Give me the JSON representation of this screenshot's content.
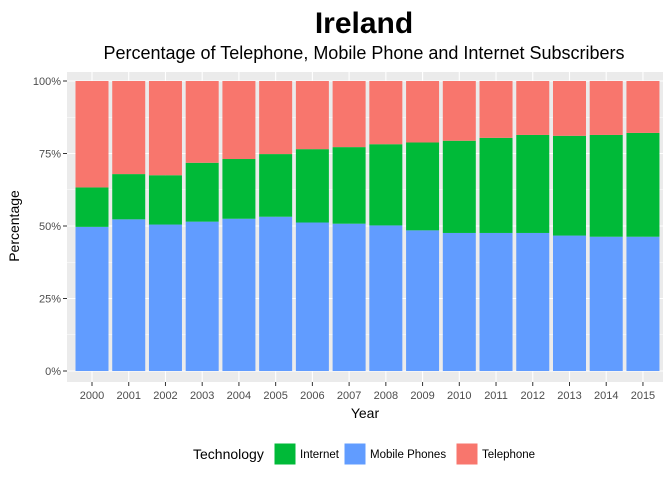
{
  "chart_data": {
    "type": "bar",
    "stacked": true,
    "title": "Ireland",
    "subtitle": "Percentage of Telephone, Mobile Phone and Internet Subscribers",
    "xlabel": "Year",
    "ylabel": "Percentage",
    "ylim": [
      0,
      100
    ],
    "y_ticks": [
      "0%",
      "25%",
      "50%",
      "75%",
      "100%"
    ],
    "categories": [
      "2000",
      "2001",
      "2002",
      "2003",
      "2004",
      "2005",
      "2006",
      "2007",
      "2008",
      "2009",
      "2010",
      "2011",
      "2012",
      "2013",
      "2014",
      "2015"
    ],
    "series": [
      {
        "name": "Mobile Phones",
        "color": "#619CFF",
        "values": [
          49.7,
          52.3,
          50.5,
          51.5,
          52.5,
          53.2,
          51.2,
          50.8,
          50.2,
          48.5,
          47.6,
          47.6,
          47.6,
          46.7,
          46.3,
          46.3
        ]
      },
      {
        "name": "Internet",
        "color": "#00BA38",
        "values": [
          13.6,
          15.6,
          17.0,
          20.3,
          20.6,
          21.6,
          25.3,
          26.4,
          28.0,
          30.3,
          31.8,
          32.8,
          33.8,
          34.4,
          35.1,
          35.8
        ]
      },
      {
        "name": "Telephone",
        "color": "#F8766D",
        "values": [
          36.7,
          32.1,
          32.5,
          28.2,
          26.9,
          25.2,
          23.5,
          22.8,
          21.8,
          21.2,
          20.6,
          19.6,
          18.6,
          18.9,
          18.6,
          17.9
        ]
      }
    ],
    "grid": true,
    "legend": {
      "title": "Technology",
      "position": "bottom",
      "order": [
        "Internet",
        "Mobile Phones",
        "Telephone"
      ]
    }
  }
}
